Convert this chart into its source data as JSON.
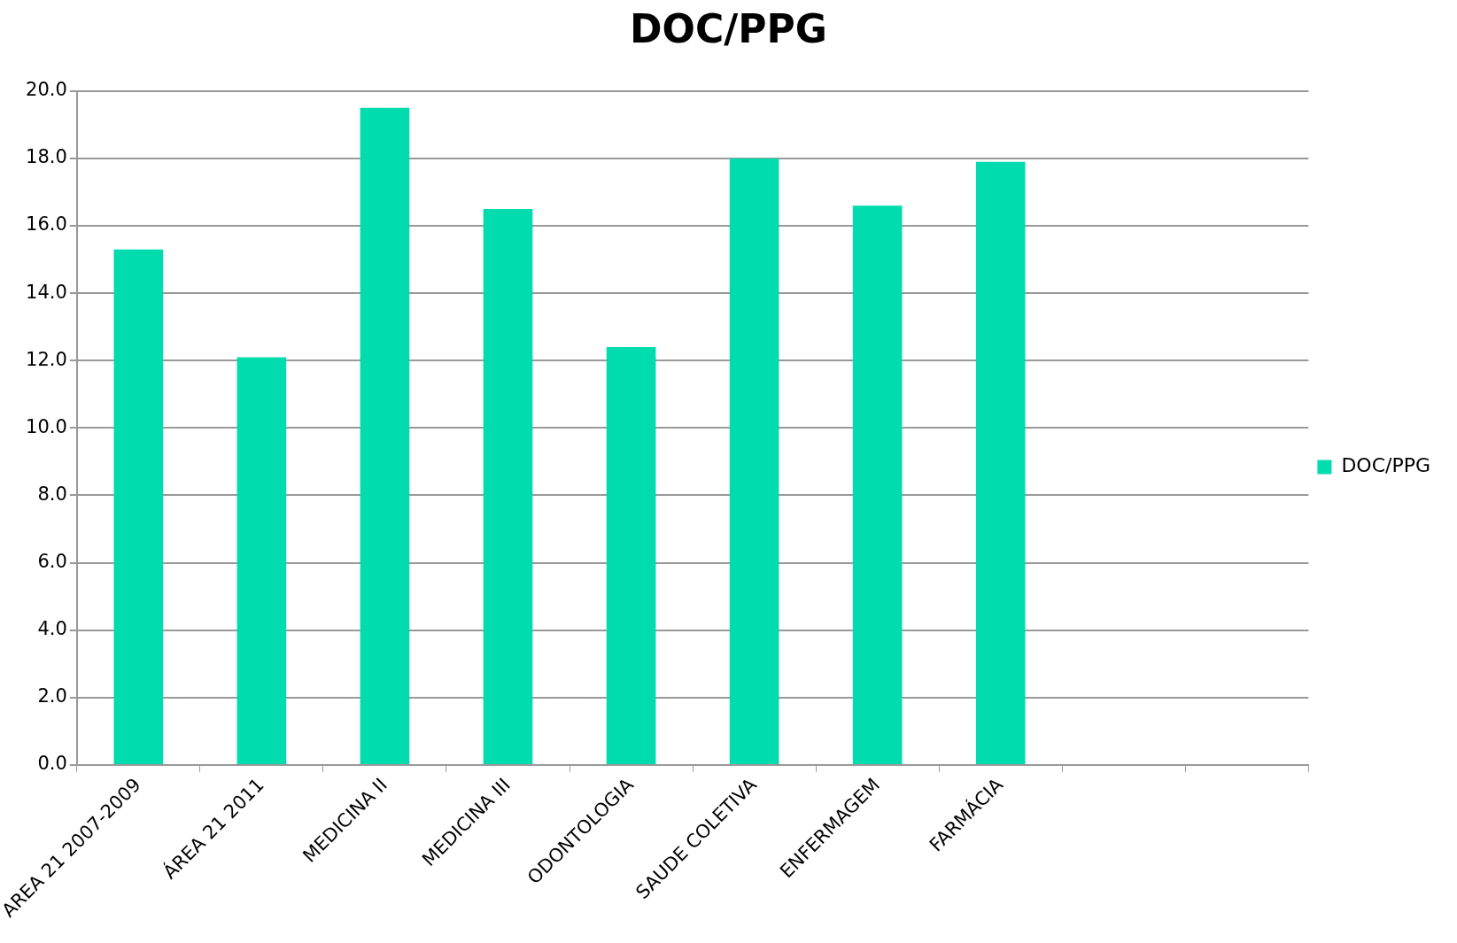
{
  "chart_data": {
    "type": "bar",
    "title": "DOC/PPG",
    "categories": [
      "AREA 21 2007-2009",
      "ÁREA 21 2011",
      "MEDICINA II",
      "MEDICINA III",
      "ODONTOLOGIA",
      "SAUDE COLETIVA",
      "ENFERMAGEM",
      "FARMÁCIA",
      null,
      null
    ],
    "series": [
      {
        "name": "DOC/PPG",
        "color": "#00dcae",
        "values": [
          15.3,
          12.1,
          19.5,
          16.5,
          12.4,
          18.0,
          16.6,
          17.9,
          null,
          null
        ]
      }
    ],
    "ylim": [
      0,
      20
    ],
    "yticks": [
      {
        "value": 0,
        "label": "0.0"
      },
      {
        "value": 2,
        "label": "2.0"
      },
      {
        "value": 4,
        "label": "4.0"
      },
      {
        "value": 6,
        "label": "6.0"
      },
      {
        "value": 8,
        "label": "8.0"
      },
      {
        "value": 10,
        "label": "10.0"
      },
      {
        "value": 12,
        "label": "12.0"
      },
      {
        "value": 14,
        "label": "14.0"
      },
      {
        "value": 16,
        "label": "16.0"
      },
      {
        "value": 18,
        "label": "18.0"
      },
      {
        "value": 20,
        "label": "20.0"
      }
    ],
    "grid": "y",
    "legend": "right"
  }
}
